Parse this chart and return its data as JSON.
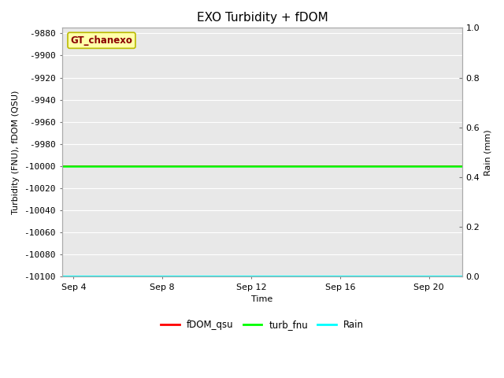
{
  "title": "EXO Turbidity + fDOM",
  "xlabel": "Time",
  "ylabel_left": "Turbidity (FNU), fDOM (QSU)",
  "ylabel_right": "Rain (mm)",
  "ylim_left": [
    -10100,
    -9875
  ],
  "ylim_right": [
    0.0,
    1.0
  ],
  "yticks_left": [
    -10100,
    -10080,
    -10060,
    -10040,
    -10020,
    -10000,
    -9980,
    -9960,
    -9940,
    -9920,
    -9900,
    -9880
  ],
  "yticks_right": [
    0.0,
    0.2,
    0.4,
    0.6,
    0.8,
    1.0
  ],
  "xtick_labels": [
    "Sep 4",
    "Sep 8",
    "Sep 12",
    "Sep 16",
    "Sep 20"
  ],
  "xtick_positions": [
    0,
    4,
    8,
    12,
    16
  ],
  "xlim": [
    -0.5,
    17.5
  ],
  "x_data": [
    -0.5,
    17.5
  ],
  "turb_fnu_y": -10000,
  "turb_fnu_color": "#00FF00",
  "fdom_qsu_y": -10000,
  "fdom_qsu_color": "#FF0000",
  "rain_y": -10100,
  "rain_color": "#00FFFF",
  "annotation_text": "GT_chanexo",
  "bg_color": "#FFFFFF",
  "plot_bg_color": "#E8E8E8",
  "grid_color": "#FFFFFF",
  "title_fontsize": 11,
  "axis_label_fontsize": 8,
  "tick_fontsize": 8,
  "legend_labels": [
    "fDOM_qsu",
    "turb_fnu",
    "Rain"
  ],
  "legend_colors": [
    "#FF0000",
    "#00FF00",
    "#00FFFF"
  ]
}
